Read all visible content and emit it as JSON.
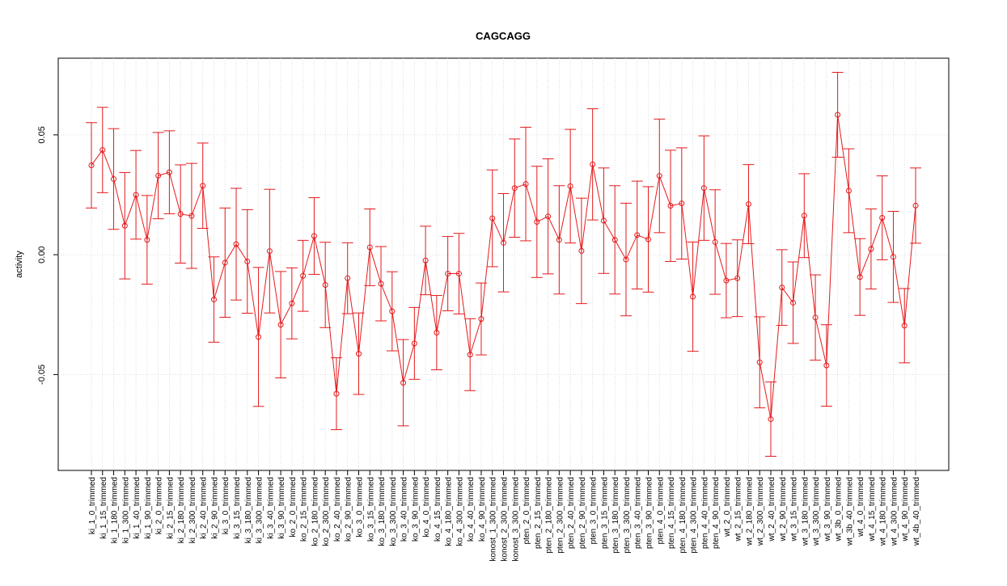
{
  "chart_data": {
    "type": "line",
    "title": "CAGCAGG",
    "ylabel": "activity",
    "xlabel": "",
    "ylim": [
      -0.09,
      0.082
    ],
    "y_ticks": [
      -0.05,
      0.0,
      0.05
    ],
    "y_tick_labels": [
      "-0.05",
      "0.00",
      "0.05"
    ],
    "grid": true,
    "series_color": "#e41a1c",
    "categories": [
      "ki_1_0_trimmed",
      "ki_1_15_trimmed",
      "ki_1_180_trimmed",
      "ki_1_300_trimmed",
      "ki_1_40_trimmed",
      "ki_1_90_trimmed",
      "ki_2_0_trimmed",
      "ki_2_15_trimmed",
      "ki_2_180_trimmed",
      "ki_2_300_trimmed",
      "ki_2_40_trimmed",
      "ki_2_90_trimmed",
      "ki_3_0_trimmed",
      "ki_3_15_trimmed",
      "ki_3_180_trimmed",
      "ki_3_300_trimmed",
      "ki_3_40_trimmed",
      "ki_3_90_trimmed",
      "ko_2_0_trimmed",
      "ko_2_15_trimmed",
      "ko_2_180_trimmed",
      "ko_2_300_trimmed",
      "ko_2_40_trimmed",
      "ko_2_90_trimmed",
      "ko_3_0_trimmed",
      "ko_3_15_trimmed",
      "ko_3_180_trimmed",
      "ko_3_300_trimmed",
      "ko_3_40_trimmed",
      "ko_3_90_trimmed",
      "ko_4_0_trimmed",
      "ko_4_15_trimmed",
      "ko_4_180_trimmed",
      "ko_4_300_trimmed",
      "ko_4_40_trimmed",
      "ko_4_90_trimmed",
      "konost_1_300_trimmed",
      "konost_2_300_trimmed",
      "konost_3_300_trimmed",
      "pten_2_0_trimmed",
      "pten_2_15_trimmed",
      "pten_2_180_trimmed",
      "pten_2_300_trimmed",
      "pten_2_40_trimmed",
      "pten_2_90_trimmed",
      "pten_3_0_trimmed",
      "pten_3_15_trimmed",
      "pten_3_180_trimmed",
      "pten_3_300_trimmed",
      "pten_3_40_trimmed",
      "pten_3_90_trimmed",
      "pten_4_0_trimmed",
      "pten_4_15_trimmed",
      "pten_4_180_trimmed",
      "pten_4_300_trimmed",
      "pten_4_40_trimmed",
      "pten_4_90_trimmed",
      "wt_2_0_trimmed",
      "wt_2_15_trimmed",
      "wt_2_180_trimmed",
      "wt_2_300_trimmed",
      "wt_2_40_trimmed",
      "wt_2_90_trimmed",
      "wt_3_15_trimmed",
      "wt_3_180_trimmed",
      "wt_3_300_trimmed",
      "wt_3_90_trimmed",
      "wt_3b_0_trimmed",
      "wt_3b_40_trimmed",
      "wt_4_0_trimmed",
      "wt_4_15_trimmed",
      "wt_4_180_trimmed",
      "wt_4_300_trimmed",
      "wt_4_90_trimmed",
      "wt_4b_40_trimmed"
    ],
    "values": [
      0.0373,
      0.0437,
      0.0316,
      0.0121,
      0.025,
      0.0062,
      0.033,
      0.0344,
      0.017,
      0.0162,
      0.0288,
      -0.0187,
      -0.0033,
      0.0044,
      -0.0028,
      -0.0343,
      0.0015,
      -0.0292,
      -0.0203,
      -0.0088,
      0.0078,
      -0.0126,
      -0.058,
      -0.0098,
      -0.0413,
      0.0031,
      -0.0121,
      -0.0236,
      -0.0534,
      -0.037,
      -0.0024,
      -0.0325,
      -0.0079,
      -0.0079,
      -0.0417,
      -0.0268,
      0.0152,
      0.005,
      0.0278,
      0.0295,
      0.0137,
      0.016,
      0.0062,
      0.0286,
      0.0016,
      0.0377,
      0.0142,
      0.0062,
      -0.002,
      0.0082,
      0.0064,
      0.0329,
      0.0204,
      0.0214,
      -0.0175,
      0.0278,
      0.0053,
      -0.0108,
      -0.0098,
      0.0211,
      -0.0449,
      -0.0686,
      -0.0137,
      -0.02,
      0.0163,
      -0.0262,
      -0.0462,
      0.0584,
      0.0267,
      -0.0093,
      0.0024,
      0.0154,
      -0.0009,
      -0.0296,
      0.0205
    ],
    "errors": [
      0.0178,
      0.0178,
      0.021,
      0.0222,
      0.0185,
      0.0185,
      0.018,
      0.0173,
      0.0205,
      0.0219,
      0.0178,
      0.0178,
      0.0228,
      0.0233,
      0.0216,
      0.029,
      0.0258,
      0.0222,
      0.0148,
      0.0148,
      0.016,
      0.0178,
      0.015,
      0.0148,
      0.017,
      0.016,
      0.0155,
      0.0165,
      0.018,
      0.015,
      0.0143,
      0.0155,
      0.0155,
      0.0168,
      0.015,
      0.015,
      0.0202,
      0.0205,
      0.0205,
      0.0237,
      0.0232,
      0.024,
      0.0226,
      0.0237,
      0.022,
      0.0232,
      0.022,
      0.0226,
      0.0235,
      0.0225,
      0.022,
      0.0237,
      0.0232,
      0.0232,
      0.0228,
      0.0218,
      0.0218,
      0.0155,
      0.016,
      0.0165,
      0.019,
      0.0155,
      0.0158,
      0.017,
      0.0175,
      0.0178,
      0.017,
      0.0177,
      0.0175,
      0.016,
      0.0167,
      0.0175,
      0.019,
      0.0155,
      0.0157
    ]
  }
}
